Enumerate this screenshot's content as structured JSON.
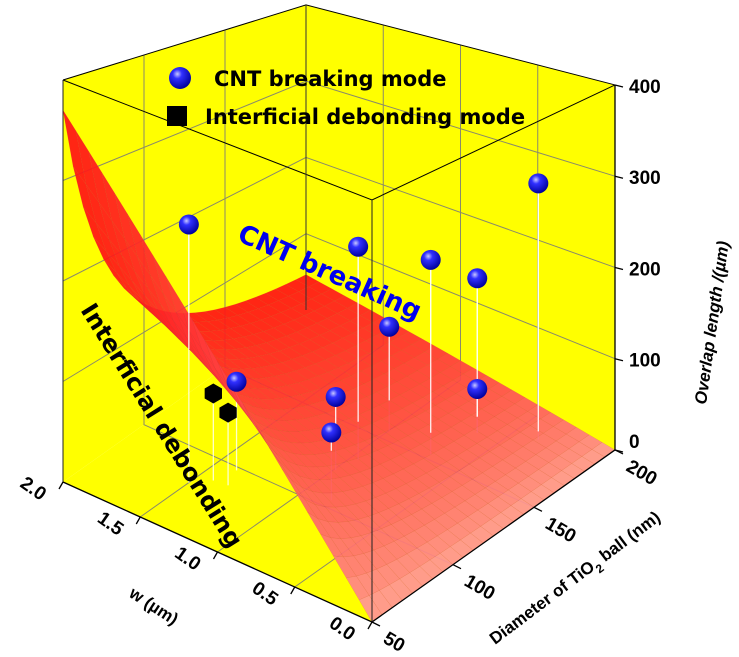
{
  "chart_data": {
    "type": "scatter3d-surface",
    "x_axis": {
      "label": "w (µm)",
      "range": [
        0,
        2
      ],
      "ticks": [
        "0.0",
        "0.5",
        "1.0",
        "1.5",
        "2.0"
      ]
    },
    "y_axis": {
      "label_main": "Diameter of TiO",
      "label_sub": "2",
      "label_end": " ball (nm)",
      "range": [
        50,
        200
      ],
      "ticks": [
        "50",
        "100",
        "150",
        "200"
      ]
    },
    "z_axis": {
      "label": "Overlap length /(µm)",
      "range": [
        0,
        400
      ],
      "ticks": [
        "0",
        "100",
        "200",
        "300",
        "400"
      ]
    },
    "legend": {
      "placement": "top",
      "items": [
        "CNT breaking mode",
        "Interficial debonding mode"
      ]
    },
    "annotations": {
      "upper_region": "CNT breaking",
      "lower_region": "Interficial debonding"
    },
    "colors": {
      "walls": "#ffff00",
      "surface_low": "#ffaaaa",
      "surface_high": "#ff1e1e",
      "cnt_marker": "#1010ff",
      "debonding_marker": "#000000",
      "annotation_cnt": "#0000ee"
    },
    "series": [
      {
        "name": "CNT breaking mode",
        "marker": "sphere",
        "points": [
          {
            "w": 1.5,
            "D": 80,
            "z": 265
          },
          {
            "w": 0.96,
            "D": 133,
            "z": 230
          },
          {
            "w": 0.7,
            "D": 153,
            "z": 213
          },
          {
            "w": 0.64,
            "D": 176,
            "z": 173
          },
          {
            "w": 0.36,
            "D": 187,
            "z": 285
          },
          {
            "w": 1.0,
            "D": 156,
            "z": 116
          },
          {
            "w": 1.38,
            "D": 98,
            "z": 93
          },
          {
            "w": 0.99,
            "D": 122,
            "z": 78
          },
          {
            "w": 0.64,
            "D": 176,
            "z": 49
          },
          {
            "w": 0.84,
            "D": 105,
            "z": 70
          }
        ]
      },
      {
        "name": "Interficial debonding mode",
        "marker": "cube",
        "points": [
          {
            "w": 1.415,
            "D": 87,
            "z": 90
          },
          {
            "w": 1.33,
            "D": 88,
            "z": 75
          }
        ]
      }
    ],
    "surface": {
      "description_formula": "boundary surface between modes",
      "grid": true
    }
  }
}
